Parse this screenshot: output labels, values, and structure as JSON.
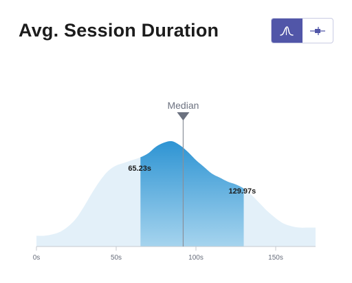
{
  "header": {
    "title": "Avg. Session Duration"
  },
  "toggle": {
    "options": [
      {
        "icon": "distribution-curve-icon",
        "active": true
      },
      {
        "icon": "box-plot-icon",
        "active": false
      }
    ]
  },
  "colors": {
    "accent": "#5156a8",
    "distribution_fill": "#e3f0f9",
    "range_top": "#2e94d3",
    "range_bottom": "#a6d4ee",
    "median_line": "#8a8f99"
  },
  "chart_data": {
    "type": "area",
    "title": "Avg. Session Duration",
    "xlabel": "",
    "ylabel": "",
    "x_unit": "s",
    "xlim": [
      0,
      175
    ],
    "ylim": [
      0,
      1
    ],
    "grid": false,
    "x_ticks": [
      0,
      50,
      100,
      150
    ],
    "x_tick_labels": [
      "0s",
      "50s",
      "100s",
      "150s"
    ],
    "median": {
      "label": "Median",
      "value": 92
    },
    "range": {
      "low": 65.23,
      "high": 129.97,
      "low_label": "65.23s",
      "high_label": "129.97s"
    },
    "x": [
      0,
      5,
      10,
      15,
      20,
      25,
      30,
      35,
      40,
      45,
      50,
      55,
      60,
      65,
      70,
      75,
      80,
      85,
      90,
      95,
      100,
      105,
      110,
      115,
      120,
      125,
      130,
      135,
      140,
      145,
      150,
      155,
      160,
      165,
      170,
      175
    ],
    "y": [
      0.08,
      0.08,
      0.09,
      0.11,
      0.15,
      0.21,
      0.3,
      0.4,
      0.49,
      0.56,
      0.6,
      0.62,
      0.64,
      0.66,
      0.69,
      0.74,
      0.77,
      0.78,
      0.75,
      0.7,
      0.64,
      0.59,
      0.54,
      0.51,
      0.48,
      0.46,
      0.43,
      0.38,
      0.32,
      0.26,
      0.21,
      0.17,
      0.15,
      0.14,
      0.14,
      0.14
    ]
  }
}
